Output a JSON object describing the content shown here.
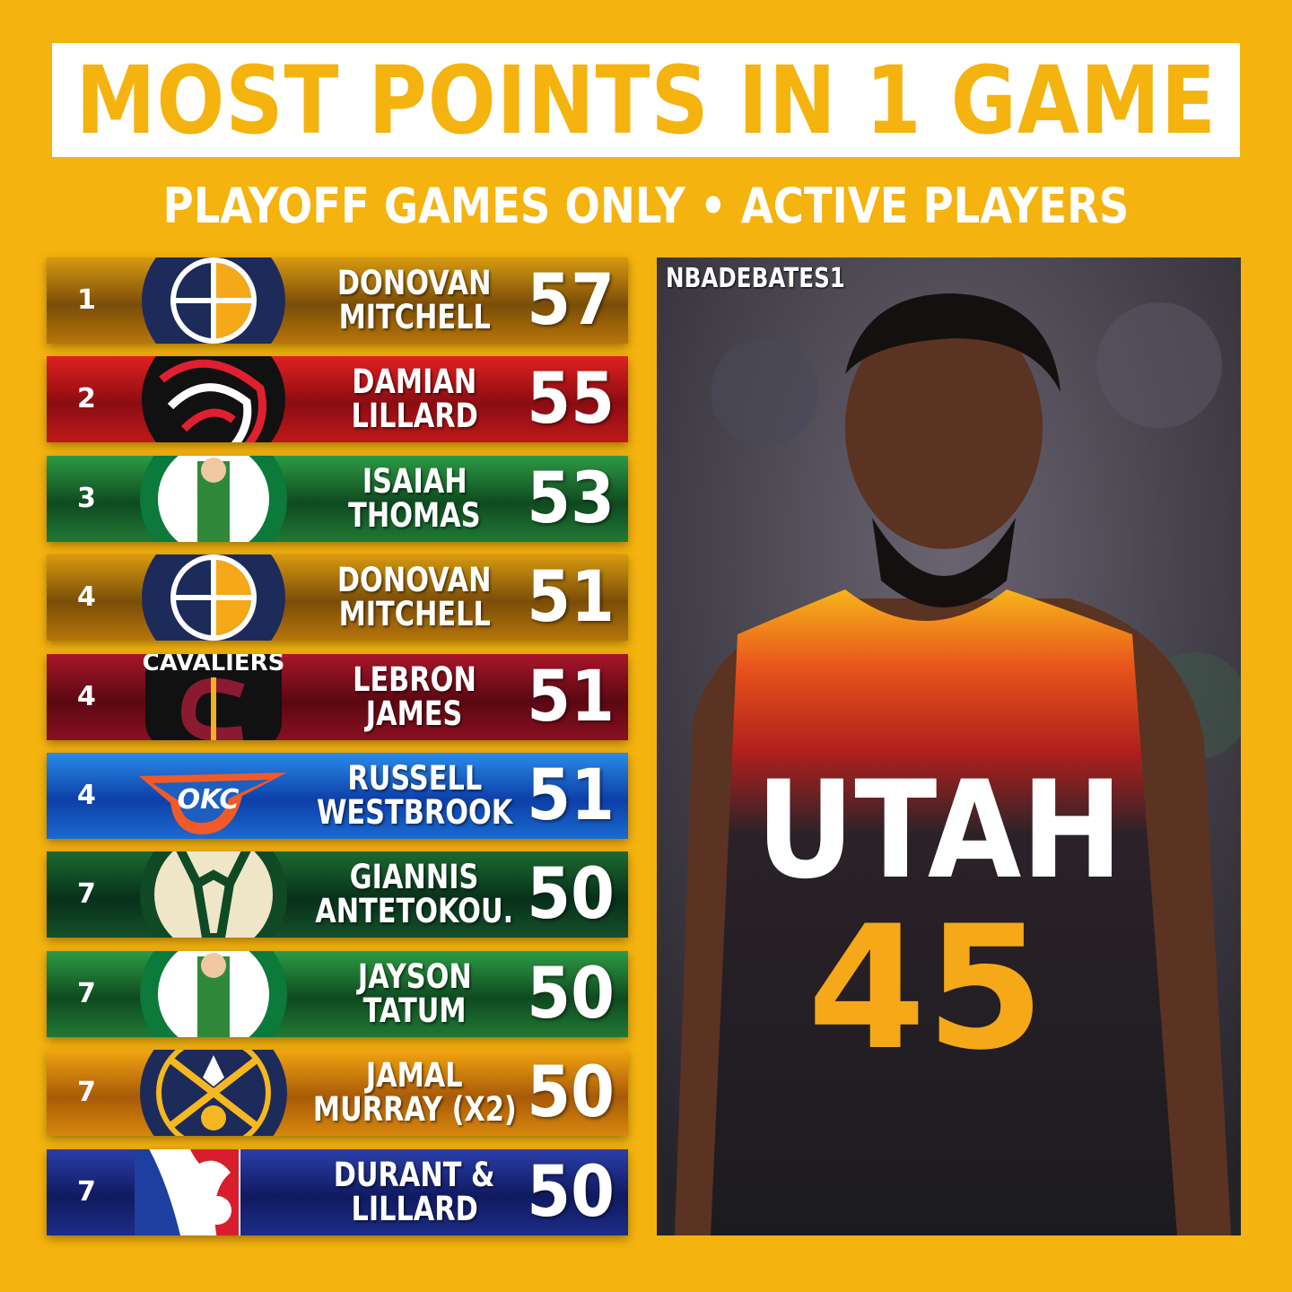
{
  "title": "MOST POINTS IN 1 GAME",
  "subtitle": "PLAYOFF GAMES ONLY • ACTIVE PLAYERS",
  "rows": [
    {
      "rank": "1",
      "first": "DONOVAN",
      "last": "MITCHELL",
      "points": "57",
      "team": "jazz",
      "bg": "linear-gradient(180deg,#d79a10,#7a4d08 55%,#b8760a)"
    },
    {
      "rank": "2",
      "first": "DAMIAN",
      "last": "LILLARD",
      "points": "55",
      "team": "blazers",
      "bg": "linear-gradient(180deg,#e02020,#8a0d12 55%,#c01818)"
    },
    {
      "rank": "3",
      "first": "ISAIAH",
      "last": "THOMAS",
      "points": "53",
      "team": "celtics",
      "bg": "linear-gradient(180deg,#2e9a45,#0f4a20 55%,#1f7a35)"
    },
    {
      "rank": "4",
      "first": "DONOVAN",
      "last": "MITCHELL",
      "points": "51",
      "team": "jazz",
      "bg": "linear-gradient(180deg,#d79a10,#7a4d08 55%,#b8760a)"
    },
    {
      "rank": "4",
      "first": "LEBRON",
      "last": "JAMES",
      "points": "51",
      "team": "cavaliers",
      "bg": "linear-gradient(180deg,#a8162a,#5a0812 55%,#8a1020)"
    },
    {
      "rank": "4",
      "first": "RUSSELL",
      "last": "WESTBROOK",
      "points": "51",
      "team": "thunder",
      "bg": "linear-gradient(180deg,#2a8ae8,#0d3fa8 55%,#1a6ad0)"
    },
    {
      "rank": "7",
      "first": "GIANNIS",
      "last": "ANTETOKOU.",
      "points": "50",
      "team": "bucks",
      "bg": "linear-gradient(180deg,#1d6a30,#08301a 55%,#14502a)"
    },
    {
      "rank": "7",
      "first": "JAYSON",
      "last": "TATUM",
      "points": "50",
      "team": "celtics",
      "bg": "linear-gradient(180deg,#2e9a45,#0f4a20 55%,#1f7a35)"
    },
    {
      "rank": "7",
      "first": "JAMAL",
      "last": "MURRAY (X2)",
      "points": "50",
      "team": "nuggets",
      "bg": "linear-gradient(180deg,#f2a510,#a85a08 55%,#d8880c)"
    },
    {
      "rank": "7",
      "first": "DURANT &",
      "last": "LILLARD",
      "points": "50",
      "team": "nba",
      "bg": "linear-gradient(180deg,#2a3ea8,#101a60 55%,#1d2d88)"
    }
  ],
  "logo_text": {
    "cavaliers": "CAVALIERS",
    "thunder": "OKC"
  },
  "photo": {
    "watermark": "NBADEBATES1",
    "jersey_text": "UTAH",
    "jersey_number": "45"
  }
}
